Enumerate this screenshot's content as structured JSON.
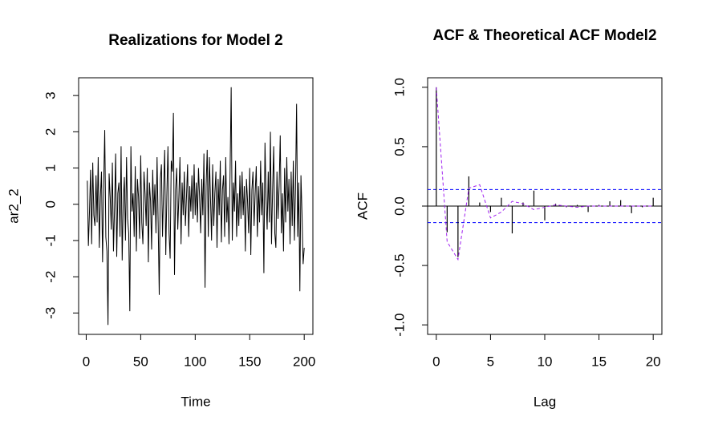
{
  "chart_data": [
    {
      "type": "line",
      "title": "Realizations for Model 2",
      "x_label": "Time",
      "y_label": "ar2_2",
      "color": "#000000",
      "x": [
        1,
        2,
        3,
        4,
        5,
        6,
        7,
        8,
        9,
        10,
        11,
        12,
        13,
        14,
        15,
        16,
        17,
        18,
        19,
        20,
        21,
        22,
        23,
        24,
        25,
        26,
        27,
        28,
        29,
        30,
        31,
        32,
        33,
        34,
        35,
        36,
        37,
        38,
        39,
        40,
        41,
        42,
        43,
        44,
        45,
        46,
        47,
        48,
        49,
        50,
        51,
        52,
        53,
        54,
        55,
        56,
        57,
        58,
        59,
        60,
        61,
        62,
        63,
        64,
        65,
        66,
        67,
        68,
        69,
        70,
        71,
        72,
        73,
        74,
        75,
        76,
        77,
        78,
        79,
        80,
        81,
        82,
        83,
        84,
        85,
        86,
        87,
        88,
        89,
        90,
        91,
        92,
        93,
        94,
        95,
        96,
        97,
        98,
        99,
        100,
        101,
        102,
        103,
        104,
        105,
        106,
        107,
        108,
        109,
        110,
        111,
        112,
        113,
        114,
        115,
        116,
        117,
        118,
        119,
        120,
        121,
        122,
        123,
        124,
        125,
        126,
        127,
        128,
        129,
        130,
        131,
        132,
        133,
        134,
        135,
        136,
        137,
        138,
        139,
        140,
        141,
        142,
        143,
        144,
        145,
        146,
        147,
        148,
        149,
        150,
        151,
        152,
        153,
        154,
        155,
        156,
        157,
        158,
        159,
        160,
        161,
        162,
        163,
        164,
        165,
        166,
        167,
        168,
        169,
        170,
        171,
        172,
        173,
        174,
        175,
        176,
        177,
        178,
        179,
        180,
        181,
        182,
        183,
        184,
        185,
        186,
        187,
        188,
        189,
        190,
        191,
        192,
        193,
        194,
        195,
        196,
        197,
        198,
        199,
        200
      ],
      "values": [
        0.65,
        -1.15,
        -0.2,
        0.95,
        -1.1,
        1.15,
        -0.3,
        -0.6,
        0.8,
        -0.5,
        1.3,
        -1.2,
        0.2,
        0.9,
        -1.6,
        0.5,
        2.05,
        -0.9,
        -1.3,
        -3.33,
        0.85,
        0.2,
        -0.7,
        1.15,
        -1.3,
        -0.1,
        1.4,
        -1.45,
        0.3,
        0.6,
        -0.9,
        1.6,
        -1.55,
        0.1,
        0.75,
        -1.0,
        1.3,
        -0.4,
        -0.8,
        -2.95,
        1.6,
        -0.2,
        0.3,
        -0.9,
        1.05,
        -1.3,
        0.7,
        0.2,
        -0.95,
        1.35,
        -0.5,
        -1.1,
        0.9,
        0.3,
        -0.6,
        1.0,
        -1.6,
        0.6,
        0.1,
        -1.25,
        0.95,
        -0.3,
        0.55,
        -0.8,
        1.3,
        -0.5,
        -2.5,
        0.7,
        1.1,
        -0.9,
        0.4,
        1.5,
        -1.4,
        0.3,
        1.6,
        -0.8,
        -1.5,
        1.2,
        0.9,
        2.52,
        -1.95,
        0.4,
        1.0,
        -0.7,
        0.2,
        1.3,
        -1.1,
        0.6,
        -0.3,
        0.9,
        -0.6,
        0.2,
        1.1,
        -0.9,
        0.5,
        -0.2,
        0.8,
        -0.4,
        1.1,
        -0.3,
        0.6,
        -0.5,
        1.0,
        0.2,
        -0.8,
        0.7,
        -0.3,
        1.4,
        -2.3,
        0.5,
        1.5,
        -0.9,
        1.3,
        0.2,
        -1.0,
        1.1,
        -0.6,
        0.3,
        0.9,
        -1.2,
        0.7,
        -0.3,
        1.2,
        -1.05,
        0.4,
        0.8,
        -0.9,
        1.3,
        -0.5,
        0.2,
        -1.1,
        0.9,
        3.23,
        -1.0,
        0.6,
        -0.2,
        1.2,
        -0.9,
        0.3,
        -0.6,
        0.8,
        -0.4,
        0.9,
        -0.3,
        0.5,
        -1.3,
        0.7,
        0.1,
        -0.8,
        1.0,
        -1.4,
        0.4,
        0.9,
        -0.6,
        0.3,
        1.05,
        -0.9,
        0.5,
        -0.5,
        1.2,
        -0.3,
        0.6,
        -1.9,
        1.7,
        0.2,
        -0.7,
        0.9,
        -0.5,
        2.0,
        -1.1,
        0.4,
        1.6,
        -0.8,
        -1.2,
        0.9,
        -0.4,
        0.5,
        1.9,
        -0.8,
        0.3,
        -1.3,
        1.0,
        -0.5,
        1.3,
        -0.2,
        0.7,
        -1.1,
        0.9,
        -0.6,
        1.2,
        -1.0,
        0.4,
        2.77,
        -0.9,
        0.6,
        -2.4,
        0.8,
        -0.3,
        -1.65,
        -1.2
      ],
      "xlim": [
        -6.96,
        207.96
      ],
      "ylim": [
        -3.59,
        3.49
      ],
      "xticks": [
        0,
        50,
        100,
        150,
        200
      ],
      "yticks": [
        -3,
        -2,
        -1,
        0,
        1,
        2,
        3
      ]
    },
    {
      "type": "acf",
      "title": "ACF & Theoretical ACF Model2",
      "x_label": "Lag",
      "y_label": "ACF",
      "color": "#000000",
      "x": [
        0,
        1,
        2,
        3,
        4,
        5,
        6,
        7,
        8,
        9,
        10,
        11,
        12,
        13,
        14,
        15,
        16,
        17,
        18,
        19,
        20
      ],
      "values": [
        1.0,
        -0.22,
        -0.43,
        0.25,
        0.03,
        -0.05,
        0.07,
        -0.23,
        0.03,
        0.13,
        -0.12,
        0.02,
        -0.01,
        0.01,
        -0.05,
        0.01,
        0.04,
        0.05,
        -0.06,
        -0.01,
        0.07
      ],
      "theoretical_values": [
        1.0,
        -0.3,
        -0.45,
        0.15,
        0.18,
        -0.1,
        -0.05,
        0.04,
        0.02,
        -0.03,
        -0.01,
        0.01,
        0.0,
        -0.01,
        0.0,
        0.0,
        0.0,
        0.0,
        0.0,
        0.0,
        0.0
      ],
      "theoretical_color": "#a020f0",
      "ci": [
        -0.139,
        0.139
      ],
      "ci_color": "#0000ff",
      "xlim": [
        -0.8,
        20.8
      ],
      "ylim": [
        -1.08,
        1.08
      ],
      "xticks": [
        0,
        5,
        10,
        15,
        20
      ],
      "yticks": [
        {
          "value": -1,
          "label": "-1.0"
        },
        -0.5,
        {
          "value": 0,
          "label": "0.0"
        },
        0.5,
        {
          "value": 1,
          "label": "1.0"
        }
      ]
    }
  ]
}
